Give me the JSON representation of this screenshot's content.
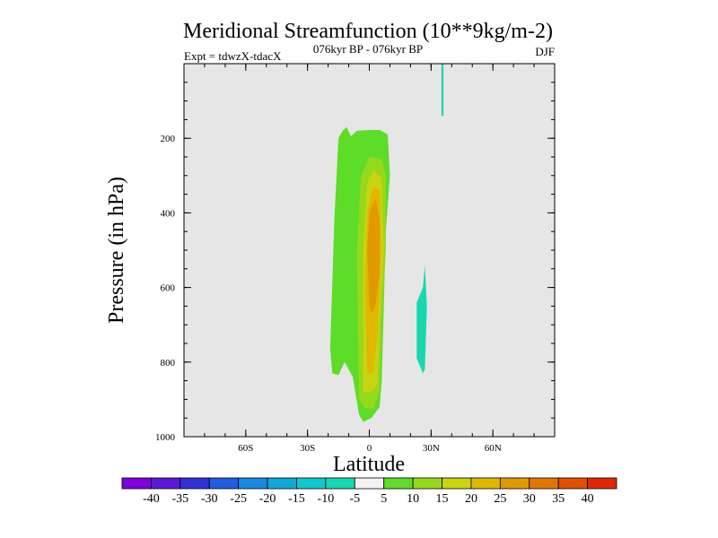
{
  "chart_data": {
    "type": "contour",
    "title": "Meridional Streamfunction (10**9kg/m-2)",
    "left_string": "Expt = tdwzX-tdacX",
    "center_string": "076kyr BP - 076kyr BP",
    "right_string": "DJF",
    "xlabel": "Latitude",
    "ylabel": "Pressure (in hPa)",
    "xlim": [
      -90,
      90
    ],
    "ylim": [
      1000,
      0
    ],
    "x_ticks": [
      {
        "value": -60,
        "label": "60S"
      },
      {
        "value": -30,
        "label": "30S"
      },
      {
        "value": 0,
        "label": "0"
      },
      {
        "value": 30,
        "label": "30N"
      },
      {
        "value": 60,
        "label": "60N"
      }
    ],
    "y_ticks": [
      {
        "value": 200,
        "label": "200"
      },
      {
        "value": 400,
        "label": "400"
      },
      {
        "value": 600,
        "label": "600"
      },
      {
        "value": 800,
        "label": "800"
      },
      {
        "value": 1000,
        "label": "1000"
      }
    ],
    "background_color": "#e6e6e6",
    "colorbar": {
      "levels": [
        "-40",
        "-35",
        "-30",
        "-25",
        "-20",
        "-15",
        "-10",
        "-5",
        "5",
        "10",
        "15",
        "20",
        "25",
        "30",
        "35",
        "40"
      ],
      "colors": [
        "#7f00dc",
        "#5a18d8",
        "#3030d8",
        "#1f5fe0",
        "#1888e0",
        "#10a8d8",
        "#10c8d0",
        "#18d8b0",
        "#f2f2f2",
        "#5ddc28",
        "#96d81a",
        "#c8d410",
        "#e0b800",
        "#e09a00",
        "#e07800",
        "#e05000",
        "#e02800"
      ]
    },
    "regions": [
      {
        "name": "positive-5-10-region",
        "level": "5 to 10",
        "color": "#5ddc28",
        "points": [
          [
            -19,
            765
          ],
          [
            -17,
            420
          ],
          [
            -15,
            200
          ],
          [
            -13,
            180
          ],
          [
            -11,
            170
          ],
          [
            -9,
            195
          ],
          [
            -6,
            180
          ],
          [
            0,
            178
          ],
          [
            5,
            178
          ],
          [
            9,
            190
          ],
          [
            10,
            300
          ],
          [
            8,
            450
          ],
          [
            7,
            650
          ],
          [
            6,
            850
          ],
          [
            5,
            920
          ],
          [
            1,
            950
          ],
          [
            -3,
            960
          ],
          [
            -5,
            940
          ],
          [
            -8,
            840
          ],
          [
            -12,
            800
          ],
          [
            -15,
            835
          ],
          [
            -18,
            830
          ]
        ]
      },
      {
        "name": "positive-10-15-region",
        "level": "10 to 15",
        "color": "#96d81a",
        "points": [
          [
            -5,
            900
          ],
          [
            -6,
            500
          ],
          [
            -4,
            300
          ],
          [
            0,
            250
          ],
          [
            6,
            255
          ],
          [
            8,
            300
          ],
          [
            8,
            500
          ],
          [
            6,
            700
          ],
          [
            5,
            880
          ],
          [
            2,
            925
          ],
          [
            -2,
            925
          ]
        ]
      },
      {
        "name": "positive-15-20-region",
        "level": "15 to 20",
        "color": "#c8d410",
        "points": [
          [
            -3,
            880
          ],
          [
            -3,
            500
          ],
          [
            -1,
            320
          ],
          [
            2,
            285
          ],
          [
            6,
            305
          ],
          [
            7,
            500
          ],
          [
            5,
            700
          ],
          [
            4,
            860
          ],
          [
            1,
            880
          ]
        ]
      },
      {
        "name": "positive-20-25-region",
        "level": "20 to 25",
        "color": "#e0b800",
        "points": [
          [
            -1,
            830
          ],
          [
            -2,
            600
          ],
          [
            -1,
            400
          ],
          [
            2,
            330
          ],
          [
            5,
            340
          ],
          [
            6,
            500
          ],
          [
            4,
            720
          ],
          [
            2,
            830
          ]
        ]
      },
      {
        "name": "positive-25-30-region",
        "level": "25 to 30",
        "color": "#e09a00",
        "points": [
          [
            0,
            650
          ],
          [
            -1,
            500
          ],
          [
            0,
            400
          ],
          [
            3,
            360
          ],
          [
            5,
            420
          ],
          [
            5,
            560
          ],
          [
            3,
            650
          ],
          [
            1,
            670
          ]
        ]
      },
      {
        "name": "negative-streak-upper",
        "level": "-10 to -5",
        "color": "#18d8b0",
        "points": [
          [
            35,
            0
          ],
          [
            36,
            0
          ],
          [
            36,
            140
          ],
          [
            35,
            140
          ]
        ]
      },
      {
        "name": "negative-patch-mid",
        "level": "-10 to -5",
        "color": "#18d8b0",
        "points": [
          [
            23,
            640
          ],
          [
            26,
            600
          ],
          [
            27,
            540
          ],
          [
            28,
            650
          ],
          [
            27,
            820
          ],
          [
            26,
            830
          ],
          [
            23,
            790
          ]
        ]
      }
    ]
  }
}
